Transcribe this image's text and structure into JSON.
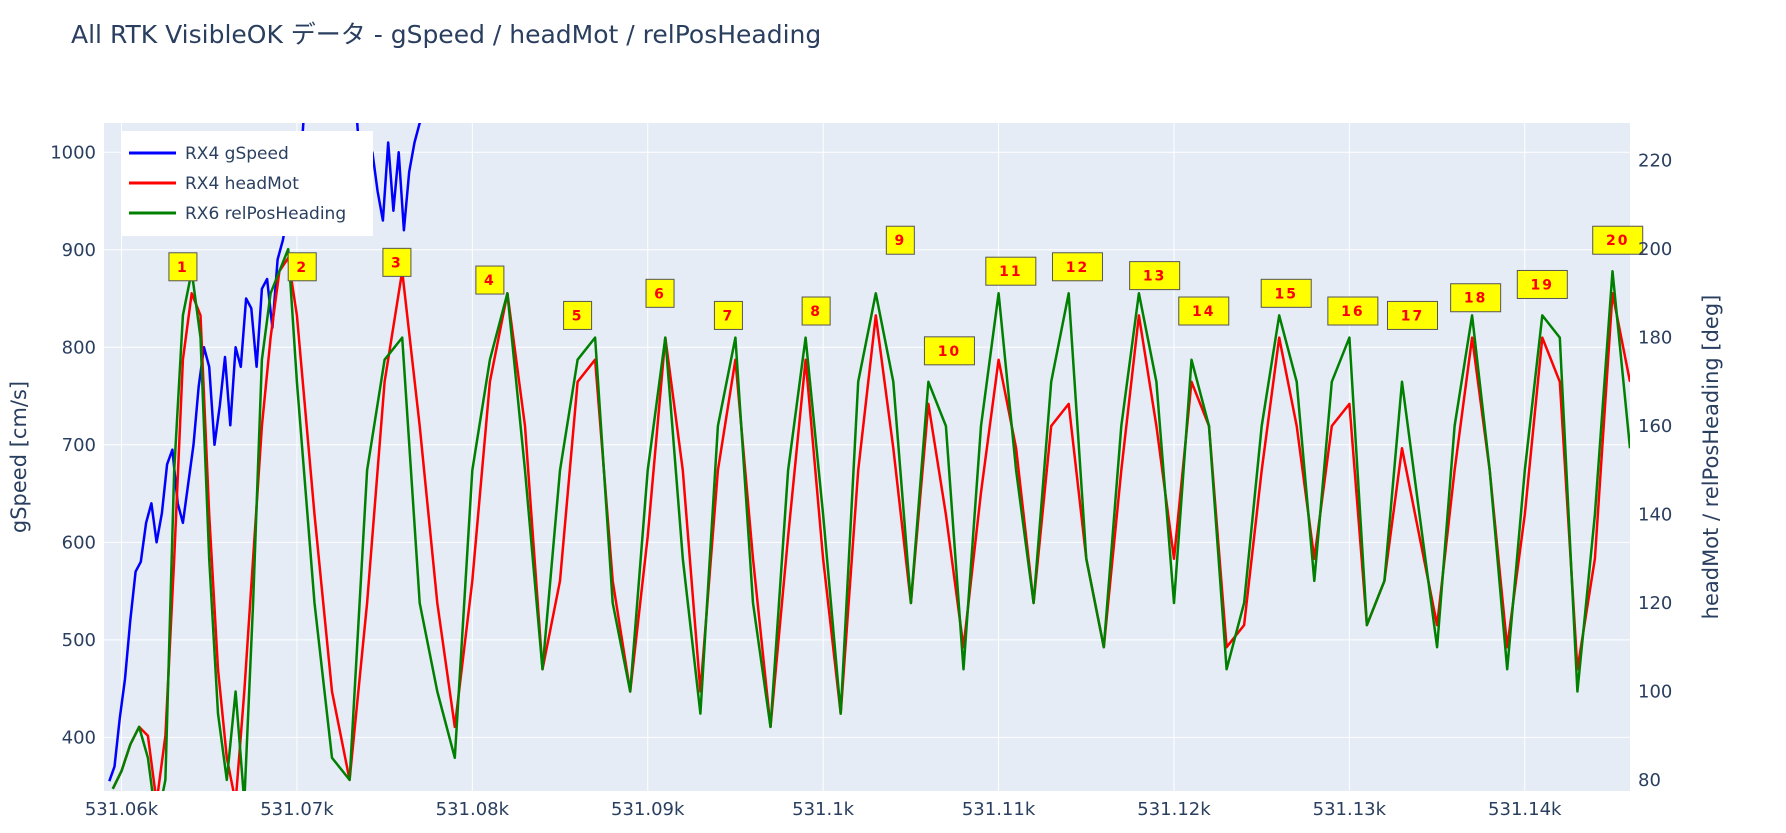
{
  "chart_data": {
    "type": "line",
    "title": "All RTK VisibleOK データ - gSpeed / headMot / relPosHeading",
    "xlabel": "",
    "ylabel_left": "gSpeed [cm/s]",
    "ylabel_right": "headMot / relPosHeading [deg]",
    "x_range": [
      531059,
      531146
    ],
    "ylim_left": [
      345,
      1030
    ],
    "ylim_right": [
      77.5,
      228.5
    ],
    "x_ticks": [
      {
        "value": 531060,
        "label": "531.06k"
      },
      {
        "value": 531070,
        "label": "531.07k"
      },
      {
        "value": 531080,
        "label": "531.08k"
      },
      {
        "value": 531090,
        "label": "531.09k"
      },
      {
        "value": 531100,
        "label": "531.1k"
      },
      {
        "value": 531110,
        "label": "531.11k"
      },
      {
        "value": 531120,
        "label": "531.12k"
      },
      {
        "value": 531130,
        "label": "531.13k"
      },
      {
        "value": 531140,
        "label": "531.14k"
      }
    ],
    "y_left_ticks": [
      {
        "value": 400,
        "label": "400"
      },
      {
        "value": 500,
        "label": "500"
      },
      {
        "value": 600,
        "label": "600"
      },
      {
        "value": 700,
        "label": "700"
      },
      {
        "value": 800,
        "label": "800"
      },
      {
        "value": 900,
        "label": "900"
      },
      {
        "value": 1000,
        "label": "1000"
      }
    ],
    "y_right_ticks": [
      {
        "value": 80,
        "label": "80"
      },
      {
        "value": 100,
        "label": "100"
      },
      {
        "value": 120,
        "label": "120"
      },
      {
        "value": 140,
        "label": "140"
      },
      {
        "value": 160,
        "label": "160"
      },
      {
        "value": 180,
        "label": "180"
      },
      {
        "value": 200,
        "label": "200"
      },
      {
        "value": 220,
        "label": "220"
      }
    ],
    "grid": true,
    "legend_position": "top-left",
    "series": [
      {
        "name": "RX4 gSpeed",
        "axis": "left",
        "color": "#0000ff",
        "x": [
          531059.3,
          531059.6,
          531059.9,
          531060.2,
          531060.5,
          531060.8,
          531061.1,
          531061.4,
          531061.7,
          531062.0,
          531062.3,
          531062.6,
          531062.9,
          531063.2,
          531063.5,
          531063.8,
          531064.1,
          531064.4,
          531064.7,
          531065.0,
          531065.3,
          531065.6,
          531065.9,
          531066.2,
          531066.5,
          531066.8,
          531067.1,
          531067.4,
          531067.7,
          531068.0,
          531068.3,
          531068.6,
          531068.9,
          531069.2,
          531069.5,
          531069.8,
          531070.1,
          531070.4,
          531070.7,
          531071.0,
          531071.3,
          531071.6,
          531071.9,
          531072.2,
          531072.5,
          531072.8,
          531073.1,
          531073.4,
          531073.7,
          531074.0,
          531074.3,
          531074.6,
          531074.9,
          531075.2,
          531075.5,
          531075.8,
          531076.1,
          531076.4,
          531076.7,
          531077.0,
          531077.3,
          531077.6,
          531077.9,
          531078.2
        ],
        "y": [
          355,
          370,
          420,
          460,
          520,
          570,
          580,
          620,
          640,
          600,
          630,
          680,
          695,
          640,
          620,
          660,
          700,
          760,
          800,
          780,
          700,
          740,
          790,
          720,
          800,
          780,
          850,
          840,
          780,
          860,
          870,
          820,
          890,
          910,
          940,
          1000,
          960,
          1040,
          1040,
          1040,
          1040,
          1040,
          1040,
          1040,
          1040,
          1040,
          1040,
          1040,
          960,
          990,
          1000,
          960,
          930,
          1010,
          940,
          1000,
          920,
          980,
          1010,
          1030,
          1040,
          1040,
          1040,
          1040
        ]
      },
      {
        "name": "RX4 headMot",
        "axis": "right",
        "color": "#ff0000",
        "x": [
          531059.5,
          531060.0,
          531060.5,
          531061.0,
          531061.5,
          531062.0,
          531062.5,
          531063.0,
          531063.5,
          531064.0,
          531064.5,
          531065.0,
          531065.5,
          531066.0,
          531066.5,
          531067.0,
          531067.5,
          531068.0,
          531068.5,
          531069.0,
          531069.5,
          531070.0,
          531071.0,
          531072.0,
          531073.0,
          531074.0,
          531075.0,
          531076.0,
          531077.0,
          531078.0,
          531079.0,
          531080.0,
          531081.0,
          531082.0,
          531083.0,
          531084.0,
          531085.0,
          531086.0,
          531087.0,
          531088.0,
          531089.0,
          531090.0,
          531091.0,
          531092.0,
          531093.0,
          531094.0,
          531095.0,
          531096.0,
          531097.0,
          531098.0,
          531099.0,
          531100.0,
          531101.0,
          531102.0,
          531103.0,
          531104.0,
          531105.0,
          531106.0,
          531107.0,
          531108.0,
          531109.0,
          531110.0,
          531111.0,
          531112.0,
          531113.0,
          531114.0,
          531115.0,
          531116.0,
          531117.0,
          531118.0,
          531119.0,
          531120.0,
          531121.0,
          531122.0,
          531123.0,
          531124.0,
          531125.0,
          531126.0,
          531127.0,
          531128.0,
          531129.0,
          531130.0,
          531131.0,
          531132.0,
          531133.0,
          531134.0,
          531135.0,
          531136.0,
          531137.0,
          531138.0,
          531139.0,
          531140.0,
          531141.0,
          531142.0,
          531143.0,
          531144.0,
          531145.0,
          531146.0
        ],
        "y": [
          78,
          82,
          88,
          92,
          90,
          75,
          90,
          130,
          175,
          190,
          185,
          140,
          105,
          85,
          75,
          100,
          130,
          160,
          180,
          195,
          198,
          185,
          140,
          100,
          80,
          120,
          170,
          195,
          160,
          120,
          92,
          125,
          170,
          190,
          160,
          105,
          125,
          170,
          175,
          125,
          100,
          135,
          180,
          150,
          100,
          150,
          175,
          130,
          92,
          135,
          175,
          130,
          95,
          150,
          185,
          155,
          120,
          165,
          140,
          110,
          145,
          175,
          155,
          120,
          160,
          165,
          130,
          110,
          150,
          185,
          160,
          130,
          170,
          160,
          110,
          115,
          150,
          180,
          160,
          130,
          160,
          165,
          115,
          125,
          155,
          135,
          115,
          150,
          180,
          150,
          110,
          140,
          180,
          170,
          105,
          130,
          190,
          170
        ]
      },
      {
        "name": "RX6 relPosHeading",
        "axis": "right",
        "color": "#008000",
        "x": [
          531059.5,
          531060.0,
          531060.5,
          531061.0,
          531061.5,
          531062.0,
          531062.5,
          531063.0,
          531063.5,
          531064.0,
          531064.5,
          531065.0,
          531065.5,
          531066.0,
          531066.5,
          531067.0,
          531067.5,
          531068.0,
          531068.5,
          531069.0,
          531069.5,
          531070.0,
          531071.0,
          531072.0,
          531073.0,
          531074.0,
          531075.0,
          531076.0,
          531077.0,
          531078.0,
          531079.0,
          531080.0,
          531081.0,
          531082.0,
          531083.0,
          531084.0,
          531085.0,
          531086.0,
          531087.0,
          531088.0,
          531089.0,
          531090.0,
          531091.0,
          531092.0,
          531093.0,
          531094.0,
          531095.0,
          531096.0,
          531097.0,
          531098.0,
          531099.0,
          531100.0,
          531101.0,
          531102.0,
          531103.0,
          531104.0,
          531105.0,
          531106.0,
          531107.0,
          531108.0,
          531109.0,
          531110.0,
          531111.0,
          531112.0,
          531113.0,
          531114.0,
          531115.0,
          531116.0,
          531117.0,
          531118.0,
          531119.0,
          531120.0,
          531121.0,
          531122.0,
          531123.0,
          531124.0,
          531125.0,
          531126.0,
          531127.0,
          531128.0,
          531129.0,
          531130.0,
          531131.0,
          531132.0,
          531133.0,
          531134.0,
          531135.0,
          531136.0,
          531137.0,
          531138.0,
          531139.0,
          531140.0,
          531141.0,
          531142.0,
          531143.0,
          531144.0,
          531145.0,
          531146.0
        ],
        "y": [
          78,
          82,
          88,
          92,
          85,
          70,
          80,
          150,
          185,
          195,
          180,
          130,
          95,
          80,
          100,
          75,
          120,
          175,
          190,
          195,
          200,
          170,
          120,
          85,
          80,
          150,
          175,
          180,
          120,
          100,
          85,
          150,
          175,
          190,
          150,
          105,
          150,
          175,
          180,
          120,
          100,
          150,
          180,
          130,
          95,
          160,
          180,
          120,
          92,
          150,
          180,
          140,
          95,
          170,
          190,
          170,
          120,
          170,
          160,
          105,
          160,
          190,
          150,
          120,
          170,
          190,
          130,
          110,
          160,
          190,
          170,
          120,
          175,
          160,
          105,
          120,
          160,
          185,
          170,
          125,
          170,
          180,
          115,
          125,
          170,
          140,
          110,
          160,
          185,
          150,
          105,
          150,
          185,
          180,
          100,
          140,
          195,
          155
        ]
      }
    ],
    "annotations": [
      {
        "text": "1",
        "x": 531063.5,
        "y": 196
      },
      {
        "text": "2",
        "x": 531070.3,
        "y": 196
      },
      {
        "text": "3",
        "x": 531075.7,
        "y": 197
      },
      {
        "text": "4",
        "x": 531081.0,
        "y": 193
      },
      {
        "text": "5",
        "x": 531086.0,
        "y": 185
      },
      {
        "text": "6",
        "x": 531090.7,
        "y": 190
      },
      {
        "text": "7",
        "x": 531094.6,
        "y": 185
      },
      {
        "text": "8",
        "x": 531099.6,
        "y": 186
      },
      {
        "text": "9",
        "x": 531104.4,
        "y": 202
      },
      {
        "text": "10",
        "x": 531107.2,
        "y": 177
      },
      {
        "text": "11",
        "x": 531110.7,
        "y": 195
      },
      {
        "text": "12",
        "x": 531114.5,
        "y": 196
      },
      {
        "text": "13",
        "x": 531118.9,
        "y": 194
      },
      {
        "text": "14",
        "x": 531121.7,
        "y": 186
      },
      {
        "text": "15",
        "x": 531126.4,
        "y": 190
      },
      {
        "text": "16",
        "x": 531130.2,
        "y": 186
      },
      {
        "text": "17",
        "x": 531133.6,
        "y": 185
      },
      {
        "text": "18",
        "x": 531137.2,
        "y": 189
      },
      {
        "text": "19",
        "x": 531141.0,
        "y": 192
      },
      {
        "text": "20",
        "x": 531145.3,
        "y": 202
      }
    ],
    "colors": {
      "plot_bg": "#e5ecf6",
      "grid": "#ffffff",
      "annotation_bg": "#ffff00",
      "annotation_text": "#ff0000",
      "text": "#2a3f5f"
    }
  }
}
